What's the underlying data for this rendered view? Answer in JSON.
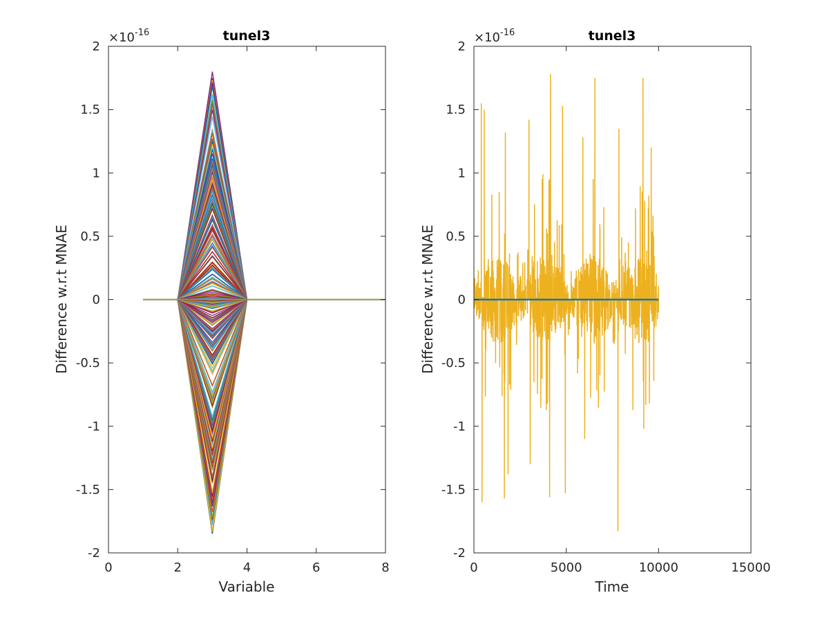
{
  "chart_data": [
    {
      "type": "line",
      "title": "tunel3",
      "xlabel": "Variable",
      "ylabel": "Difference w.r.t MNAE",
      "xlim": [
        0,
        8
      ],
      "ylim": [
        -2,
        2
      ],
      "y_exponent_label": "×10",
      "y_exponent_power": "-16",
      "xticks": [
        "0",
        "2",
        "4",
        "6",
        "8"
      ],
      "yticks": [
        "-2",
        "-1.5",
        "-1",
        "-0.5",
        "0",
        "0.5",
        "1",
        "1.5",
        "2"
      ],
      "x_values": [
        1,
        2,
        3,
        4,
        5,
        6,
        7,
        8
      ],
      "series_shape": "many series (one per time step), nonzero only at variable 3, zero elsewhere",
      "peak_range_at_variable_3": [
        -1.85,
        1.8
      ],
      "palette": [
        "#0072BD",
        "#D95319",
        "#EDB120",
        "#7E2F8E",
        "#77AC30",
        "#4DBEEE",
        "#A2142F"
      ]
    },
    {
      "type": "line",
      "title": "tunel3",
      "xlabel": "Time",
      "ylabel": "Difference w.r.t MNAE",
      "xlim": [
        0,
        15000
      ],
      "ylim": [
        -2,
        2
      ],
      "y_exponent_label": "×10",
      "y_exponent_power": "-16",
      "xticks": [
        "0",
        "5000",
        "10000",
        "15000"
      ],
      "yticks": [
        "-2",
        "-1.5",
        "-1",
        "-0.5",
        "0",
        "0.5",
        "1",
        "1.5",
        "2"
      ],
      "time_range": [
        1,
        10000
      ],
      "series": [
        {
          "color": "#EDB120",
          "kind": "noisy",
          "spikes": [
            [
              400,
              1.55
            ],
            [
              440,
              -1.6
            ],
            [
              560,
              1.5
            ],
            [
              1700,
              1.32
            ],
            [
              1650,
              -1.57
            ],
            [
              1850,
              -1.38
            ],
            [
              2980,
              1.42
            ],
            [
              3050,
              -1.3
            ],
            [
              4150,
              1.78
            ],
            [
              4100,
              -1.56
            ],
            [
              4800,
              1.53
            ],
            [
              4950,
              -1.53
            ],
            [
              5900,
              1.28
            ],
            [
              6000,
              -1.1
            ],
            [
              6550,
              1.75
            ],
            [
              7800,
              -1.83
            ],
            [
              7850,
              1.35
            ],
            [
              9150,
              1.75
            ],
            [
              9200,
              -1.02
            ],
            [
              9600,
              1.2
            ],
            [
              9500,
              -0.82
            ]
          ]
        },
        {
          "color": "#0072BD",
          "kind": "flat",
          "value": 0
        }
      ]
    }
  ]
}
